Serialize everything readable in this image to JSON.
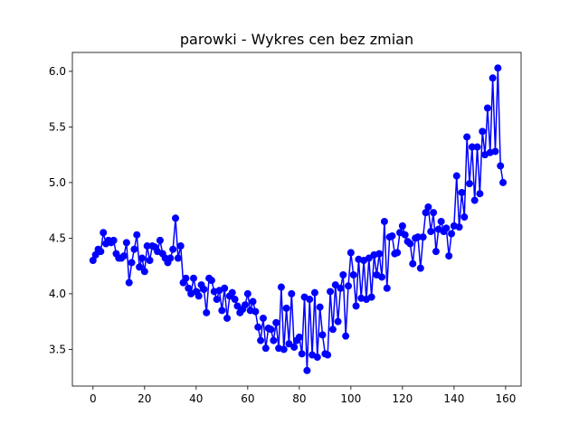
{
  "chart_data": {
    "type": "line",
    "title": "parowki - Wykres cen bez zmian",
    "xlabel": "",
    "ylabel": "",
    "xlim": [
      -8,
      166
    ],
    "ylim": [
      3.17,
      6.17
    ],
    "xticks": [
      0,
      20,
      40,
      60,
      80,
      100,
      120,
      140,
      160
    ],
    "xtick_labels": [
      "0",
      "20",
      "40",
      "60",
      "80",
      "100",
      "120",
      "140",
      "160"
    ],
    "yticks": [
      3.5,
      4.0,
      4.5,
      5.0,
      5.5,
      6.0
    ],
    "ytick_labels": [
      "3.5",
      "4.0",
      "4.5",
      "5.0",
      "5.5",
      "6.0"
    ],
    "grid": false,
    "legend": "none",
    "series": [
      {
        "color": "#0000ff",
        "marker": "circle",
        "x": [
          0,
          1,
          2,
          3,
          4,
          5,
          6,
          7,
          8,
          9,
          10,
          11,
          12,
          13,
          14,
          15,
          16,
          17,
          18,
          19,
          20,
          21,
          22,
          23,
          24,
          25,
          26,
          27,
          28,
          29,
          30,
          31,
          32,
          33,
          34,
          35,
          36,
          37,
          38,
          39,
          40,
          41,
          42,
          43,
          44,
          45,
          46,
          47,
          48,
          49,
          50,
          51,
          52,
          53,
          54,
          55,
          56,
          57,
          58,
          59,
          60,
          61,
          62,
          63,
          64,
          65,
          66,
          67,
          68,
          69,
          70,
          71,
          72,
          73,
          74,
          75,
          76,
          77,
          78,
          79,
          80,
          81,
          82,
          83,
          84,
          85,
          86,
          87,
          88,
          89,
          90,
          91,
          92,
          93,
          94,
          95,
          96,
          97,
          98,
          99,
          100,
          101,
          102,
          103,
          104,
          105,
          106,
          107,
          108,
          109,
          110,
          111,
          112,
          113,
          114,
          115,
          116,
          117,
          118,
          119,
          120,
          121,
          122,
          123,
          124,
          125,
          126,
          127,
          128,
          129,
          130,
          131,
          132,
          133,
          134,
          135,
          136,
          137,
          138,
          139,
          140,
          141,
          142,
          143,
          144,
          145,
          146,
          147,
          148,
          149,
          150,
          151,
          152,
          153,
          154,
          155,
          156,
          157,
          158,
          159
        ],
        "y": [
          4.3,
          4.35,
          4.4,
          4.38,
          4.55,
          4.45,
          4.48,
          4.46,
          4.48,
          4.36,
          4.32,
          4.32,
          4.34,
          4.46,
          4.1,
          4.28,
          4.4,
          4.53,
          4.24,
          4.32,
          4.2,
          4.43,
          4.3,
          4.43,
          4.42,
          4.38,
          4.48,
          4.36,
          4.32,
          4.28,
          4.32,
          4.4,
          4.68,
          4.32,
          4.43,
          4.1,
          4.14,
          4.05,
          4.0,
          4.14,
          4.02,
          3.98,
          4.08,
          4.04,
          3.83,
          4.14,
          4.12,
          4.02,
          3.95,
          4.03,
          3.85,
          4.05,
          3.78,
          3.98,
          4.01,
          3.95,
          3.89,
          3.83,
          3.86,
          3.9,
          4.0,
          3.85,
          3.93,
          3.84,
          3.7,
          3.58,
          3.78,
          3.51,
          3.69,
          3.68,
          3.58,
          3.74,
          3.51,
          4.06,
          3.5,
          3.87,
          3.55,
          4.0,
          3.52,
          3.58,
          3.61,
          3.46,
          3.97,
          3.31,
          3.95,
          3.45,
          4.01,
          3.43,
          3.88,
          3.63,
          3.46,
          3.45,
          4.02,
          3.68,
          4.08,
          3.75,
          4.05,
          4.17,
          3.62,
          4.07,
          4.37,
          4.17,
          3.89,
          4.31,
          3.96,
          4.3,
          3.95,
          4.32,
          3.97,
          4.35,
          4.17,
          4.36,
          4.15,
          4.65,
          4.05,
          4.51,
          4.52,
          4.36,
          4.37,
          4.55,
          4.61,
          4.53,
          4.47,
          4.45,
          4.27,
          4.5,
          4.51,
          4.23,
          4.51,
          4.73,
          4.78,
          4.56,
          4.73,
          4.38,
          4.58,
          4.65,
          4.56,
          4.59,
          4.34,
          4.54,
          4.61,
          5.06,
          4.6,
          4.91,
          4.69,
          5.41,
          4.99,
          5.32,
          4.84,
          5.32,
          4.9,
          5.46,
          5.25,
          5.67,
          5.27,
          5.94,
          5.28,
          6.03,
          5.15,
          5.0
        ]
      }
    ]
  }
}
